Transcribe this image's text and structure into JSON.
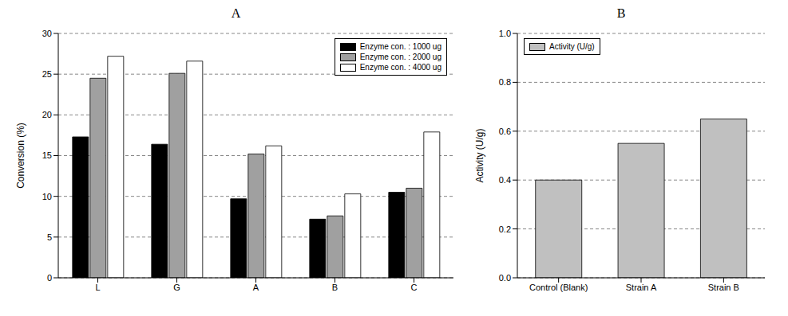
{
  "chart_data": [
    {
      "type": "bar",
      "title": "A",
      "categories": [
        "L",
        "G",
        "A",
        "B",
        "C"
      ],
      "series": [
        {
          "name": "Enzyme con. : 1000 ug",
          "color": "#000000",
          "values": [
            17.3,
            16.4,
            9.7,
            7.2,
            10.5
          ]
        },
        {
          "name": "Enzyme con. : 2000 ug",
          "color": "#a0a0a0",
          "values": [
            24.5,
            25.1,
            15.2,
            7.6,
            11.0
          ]
        },
        {
          "name": "Enzyme con. : 4000 ug",
          "color": "#ffffff",
          "values": [
            27.2,
            26.6,
            16.2,
            10.3,
            17.9
          ]
        }
      ],
      "y_label": "Conversion (%)",
      "ylim": [
        0,
        30
      ],
      "yticks": [
        0,
        5,
        10,
        15,
        20,
        25,
        30
      ],
      "grid": true,
      "legend": "upper right"
    },
    {
      "type": "bar",
      "title": "B",
      "categories": [
        "Control (Blank)",
        "Strain A",
        "Strain B"
      ],
      "series": [
        {
          "name": "Activity (U/g)",
          "color": "#c0c0c0",
          "values": [
            0.4,
            0.55,
            0.65
          ]
        }
      ],
      "y_label": "Activity (U/g)",
      "ylim": [
        0,
        1.0
      ],
      "yticks": [
        {
          "value": 0,
          "label": "0.0"
        },
        {
          "value": 0.2,
          "label": "0.2"
        },
        {
          "value": 0.4,
          "label": "0.4"
        },
        {
          "value": 0.6,
          "label": "0.6"
        },
        {
          "value": 0.8,
          "label": "0.8"
        },
        {
          "value": 1.0,
          "label": "1.0"
        }
      ],
      "grid": true,
      "legend": "upper left"
    }
  ]
}
